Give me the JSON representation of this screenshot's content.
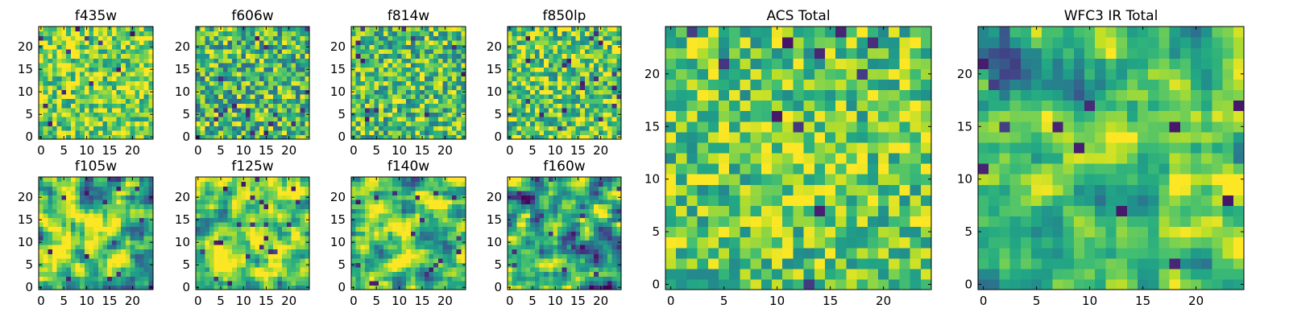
{
  "chart_data": [
    {
      "type": "heatmap",
      "title": "f435w",
      "colormap": "viridis",
      "xlim": [
        0,
        24
      ],
      "ylim": [
        0,
        24
      ],
      "xticks": [
        "0",
        "5",
        "10",
        "15",
        "20"
      ],
      "yticks": [
        "0",
        "5",
        "10",
        "15",
        "20"
      ],
      "grid_size": [
        25,
        25
      ],
      "description": "Pixelated noise map, mostly yellow-green, sparse dark pixels"
    },
    {
      "type": "heatmap",
      "title": "f606w",
      "colormap": "viridis",
      "xlim": [
        0,
        24
      ],
      "ylim": [
        0,
        24
      ],
      "xticks": [
        "0",
        "5",
        "10",
        "15",
        "20"
      ],
      "yticks": [
        "0",
        "5",
        "10",
        "15",
        "20"
      ],
      "grid_size": [
        25,
        25
      ],
      "description": "Pixelated noise map, green-teal with scattered purple pixels"
    },
    {
      "type": "heatmap",
      "title": "f814w",
      "colormap": "viridis",
      "xlim": [
        0,
        24
      ],
      "ylim": [
        0,
        24
      ],
      "xticks": [
        "0",
        "5",
        "10",
        "15",
        "20"
      ],
      "yticks": [
        "0",
        "5",
        "10",
        "15",
        "20"
      ],
      "grid_size": [
        25,
        25
      ],
      "description": "Pixelated noise map, green with some dark spots near right edge"
    },
    {
      "type": "heatmap",
      "title": "f850lp",
      "colormap": "viridis",
      "xlim": [
        0,
        24
      ],
      "ylim": [
        0,
        24
      ],
      "xticks": [
        "0",
        "5",
        "10",
        "15",
        "20"
      ],
      "yticks": [
        "0",
        "5",
        "10",
        "15",
        "20"
      ],
      "grid_size": [
        25,
        25
      ],
      "description": "Pixelated noise map, green-yellow with dark pixels at right edge"
    },
    {
      "type": "heatmap",
      "title": "f105w",
      "colormap": "viridis",
      "xlim": [
        0,
        24
      ],
      "ylim": [
        0,
        24
      ],
      "xticks": [
        "0",
        "5",
        "10",
        "15",
        "20"
      ],
      "yticks": [
        "0",
        "5",
        "10",
        "15",
        "20"
      ],
      "grid_size": [
        25,
        25
      ],
      "description": "Smoother noise map with bright yellow blob near center"
    },
    {
      "type": "heatmap",
      "title": "f125w",
      "colormap": "viridis",
      "xlim": [
        0,
        24
      ],
      "ylim": [
        0,
        24
      ],
      "xticks": [
        "0",
        "5",
        "10",
        "15",
        "20"
      ],
      "yticks": [
        "0",
        "5",
        "10",
        "15",
        "20"
      ],
      "grid_size": [
        25,
        25
      ],
      "description": "Smooth noise map, mostly yellow-green"
    },
    {
      "type": "heatmap",
      "title": "f140w",
      "colormap": "viridis",
      "xlim": [
        0,
        24
      ],
      "ylim": [
        0,
        24
      ],
      "xticks": [
        "0",
        "5",
        "10",
        "15",
        "20"
      ],
      "yticks": [
        "0",
        "5",
        "10",
        "15",
        "20"
      ],
      "grid_size": [
        25,
        25
      ],
      "description": "Smooth noise map, green with purple spots"
    },
    {
      "type": "heatmap",
      "title": "f160w",
      "colormap": "viridis",
      "xlim": [
        0,
        24
      ],
      "ylim": [
        0,
        24
      ],
      "xticks": [
        "0",
        "5",
        "10",
        "15",
        "20"
      ],
      "yticks": [
        "0",
        "5",
        "10",
        "15",
        "20"
      ],
      "grid_size": [
        25,
        25
      ],
      "description": "Smooth noise map with dark purple patches on left"
    },
    {
      "type": "heatmap",
      "title": "ACS Total",
      "colormap": "viridis",
      "xlim": [
        0,
        24
      ],
      "ylim": [
        0,
        24
      ],
      "xticks": [
        "0",
        "5",
        "10",
        "15",
        "20"
      ],
      "yticks": [
        "0",
        "5",
        "10",
        "15",
        "20"
      ],
      "grid_size": [
        25,
        25
      ],
      "description": "Combined ACS stack, mostly green-yellow, bright spot near (12,12)"
    },
    {
      "type": "heatmap",
      "title": "WFC3 IR Total",
      "colormap": "viridis",
      "xlim": [
        0,
        24
      ],
      "ylim": [
        0,
        24
      ],
      "xticks": [
        "0",
        "5",
        "10",
        "15",
        "20"
      ],
      "yticks": [
        "0",
        "5",
        "10",
        "15",
        "20"
      ],
      "grid_size": [
        25,
        25
      ],
      "description": "Combined IR stack, bright yellow source near (12,12), dark region upper-left"
    }
  ]
}
